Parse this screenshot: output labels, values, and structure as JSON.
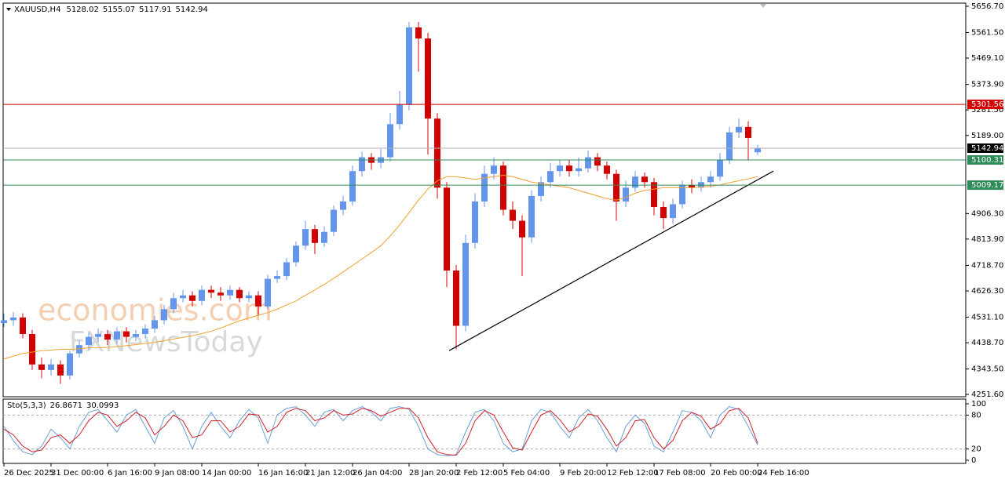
{
  "chart_data": [
    {
      "type": "candlestick",
      "title": "XAUUSD,H4",
      "up_color": "#6495ed",
      "down_color": "#d40000",
      "annotations": [
        "economies.com",
        "FXNewsToday"
      ],
      "categories": [
        "26 Dec 2025",
        null,
        null,
        null,
        null,
        "31 Dec 00:00",
        null,
        null,
        null,
        null,
        null,
        "6 Jan 16:00",
        null,
        null,
        null,
        null,
        "9 Jan 08:00",
        null,
        null,
        null,
        null,
        "14 Jan 00:00",
        null,
        null,
        null,
        null,
        null,
        "16 Jan 16:00",
        null,
        null,
        null,
        null,
        "21 Jan 12:00",
        null,
        null,
        null,
        null,
        "26 Jan 04:00",
        null,
        null,
        null,
        null,
        null,
        "28 Jan 20:00",
        null,
        null,
        null,
        null,
        "2 Feb 12:00",
        null,
        null,
        null,
        null,
        "5 Feb 04:00",
        null,
        null,
        null,
        null,
        null,
        "9 Feb 20:00",
        null,
        null,
        null,
        null,
        "12 Feb 12:00",
        null,
        null,
        null,
        null,
        "17 Feb 08:00",
        null,
        null,
        null,
        null,
        null,
        "20 Feb 00:00",
        null,
        null,
        null,
        null,
        "24 Feb 16:00"
      ],
      "open": [
        4510,
        4520,
        4530,
        4470,
        4360,
        4340,
        4360,
        4320,
        4400,
        4430,
        4460,
        4470,
        4450,
        4480,
        4460,
        4470,
        4490,
        4520,
        4560,
        4600,
        4610,
        4590,
        4630,
        4620,
        4610,
        4630,
        4600,
        4610,
        4570,
        4670,
        4680,
        4730,
        4790,
        4850,
        4800,
        4840,
        4920,
        4950,
        5060,
        5110,
        5090,
        5110,
        5230,
        5300,
        5580,
        5540,
        5250,
        5000,
        4700,
        4500,
        4800,
        4950,
        5050,
        5080,
        4920,
        4880,
        4820,
        4970,
        5020,
        5060,
        5080,
        5060,
        5070,
        5110,
        5080,
        5050,
        4950,
        5000,
        5040,
        5020,
        4930,
        4890,
        4940,
        5010,
        5000,
        5020,
        5040,
        5100,
        5200,
        5220,
        5128.02
      ],
      "high": [
        4545,
        4550,
        4545,
        4485,
        4385,
        4380,
        4375,
        4410,
        4445,
        4475,
        4490,
        4485,
        4495,
        4495,
        4485,
        4505,
        4535,
        4575,
        4620,
        4630,
        4625,
        4645,
        4645,
        4640,
        4645,
        4640,
        4625,
        4625,
        4685,
        4700,
        4745,
        4805,
        4880,
        4865,
        4860,
        4935,
        4970,
        5080,
        5130,
        5125,
        5140,
        5270,
        5350,
        5600,
        5600,
        5560,
        5270,
        5020,
        4720,
        4830,
        4980,
        5080,
        5110,
        5095,
        4950,
        4900,
        4990,
        5040,
        5090,
        5100,
        5100,
        5110,
        5135,
        5125,
        5095,
        5065,
        5025,
        5060,
        5055,
        5035,
        4950,
        4960,
        5025,
        5030,
        5040,
        5060,
        5125,
        5220,
        5250,
        5240,
        5155.07
      ],
      "low": [
        4495,
        4500,
        4455,
        4340,
        4310,
        4320,
        4290,
        4305,
        4385,
        4415,
        4440,
        4430,
        4435,
        4440,
        4445,
        4455,
        4475,
        4505,
        4545,
        4585,
        4570,
        4575,
        4600,
        4590,
        4595,
        4585,
        4585,
        4540,
        4560,
        4655,
        4665,
        4715,
        4775,
        4760,
        4785,
        4825,
        4900,
        4935,
        5040,
        5065,
        5070,
        5095,
        5210,
        5280,
        5420,
        5120,
        4960,
        4640,
        4415,
        4480,
        4780,
        4930,
        5030,
        4900,
        4850,
        4680,
        4800,
        4950,
        5000,
        5040,
        5040,
        5040,
        5055,
        5060,
        5030,
        4880,
        4930,
        4985,
        5000,
        4900,
        4850,
        4870,
        4925,
        4980,
        4985,
        5000,
        5025,
        5085,
        5180,
        5100,
        5117.91
      ],
      "close": [
        4520,
        4530,
        4470,
        4360,
        4340,
        4360,
        4320,
        4400,
        4430,
        4460,
        4470,
        4450,
        4480,
        4460,
        4470,
        4490,
        4520,
        4560,
        4600,
        4610,
        4590,
        4630,
        4620,
        4610,
        4630,
        4600,
        4610,
        4570,
        4670,
        4680,
        4730,
        4790,
        4850,
        4800,
        4840,
        4920,
        4950,
        5060,
        5110,
        5090,
        5110,
        5230,
        5300,
        5580,
        5540,
        5250,
        5000,
        4700,
        4500,
        4800,
        4950,
        5050,
        5080,
        4920,
        4880,
        4820,
        4970,
        5020,
        5060,
        5080,
        5060,
        5070,
        5110,
        5080,
        5050,
        4950,
        5000,
        5040,
        5020,
        4930,
        4890,
        4940,
        5010,
        5000,
        5020,
        5040,
        5100,
        5200,
        5220,
        5180,
        5142.94
      ],
      "ma": {
        "color": "#f0a030",
        "values": [
          4380,
          4390,
          4400,
          4405,
          4410,
          4412,
          4415,
          4415,
          4417,
          4420,
          4420,
          4422,
          4425,
          4428,
          4432,
          4436,
          4440,
          4446,
          4452,
          4458,
          4464,
          4472,
          4480,
          4492,
          4505,
          4518,
          4528,
          4538,
          4548,
          4560,
          4575,
          4590,
          4610,
          4630,
          4650,
          4672,
          4695,
          4718,
          4742,
          4765,
          4790,
          4825,
          4865,
          4910,
          4955,
          4995,
          5025,
          5040,
          5040,
          5035,
          5030,
          5035,
          5040,
          5045,
          5040,
          5030,
          5020,
          5015,
          5010,
          5005,
          5000,
          4990,
          4980,
          4970,
          4960,
          4955,
          4965,
          4980,
          4990,
          4995,
          5000,
          5000,
          5000,
          5000,
          5002,
          5005,
          5010,
          5018,
          5025,
          5032,
          5040
        ]
      },
      "hlines": [
        {
          "value": 5301.56,
          "color": "#d40000",
          "label_bg": "#d40000"
        },
        {
          "value": 5142.94,
          "color": "#b0b0b0",
          "label_bg": "#000000"
        },
        {
          "value": 5100.31,
          "color": "#2e8b57",
          "label_bg": "#2e8b57"
        },
        {
          "value": 5009.17,
          "color": "#2e8b57",
          "label_bg": "#2e8b57"
        }
      ],
      "trendline": {
        "color": "#000000",
        "x": [
          47.25,
          81.67
        ],
        "y": [
          4410,
          5060
        ]
      },
      "ylim": [
        4243.1,
        5668.0
      ],
      "yticks": [
        {
          "value": 5656.7,
          "label": "5656.70"
        },
        {
          "value": 5561.5,
          "label": "5561.50"
        },
        {
          "value": 5469.1,
          "label": "5469.10"
        },
        {
          "value": 5373.9,
          "label": "5373.90"
        },
        {
          "value": 5281.5,
          "label": "5281.50"
        },
        {
          "value": 5189.0,
          "label": "5189.00"
        },
        {
          "value": 4906.3,
          "label": "4906.30"
        },
        {
          "value": 4813.9,
          "label": "4813.90"
        },
        {
          "value": 4718.7,
          "label": "4718.70"
        },
        {
          "value": 4626.3,
          "label": "4626.30"
        },
        {
          "value": 4531.1,
          "label": "4531.10"
        },
        {
          "value": 4438.7,
          "label": "4438.70"
        },
        {
          "value": 4343.5,
          "label": "4343.50"
        },
        {
          "value": 4251.6,
          "label": "4251.60"
        }
      ]
    },
    {
      "type": "line",
      "title": "Sto(5,3,3)",
      "series": [
        {
          "color": "#6a9fd8",
          "values": [
            60,
            35,
            15,
            10,
            25,
            55,
            40,
            20,
            60,
            85,
            90,
            70,
            50,
            80,
            90,
            60,
            30,
            75,
            88,
            60,
            20,
            60,
            85,
            60,
            40,
            70,
            90,
            75,
            30,
            80,
            92,
            95,
            80,
            60,
            85,
            90,
            70,
            88,
            95,
            85,
            70,
            92,
            95,
            90,
            60,
            20,
            10,
            8,
            10,
            50,
            85,
            90,
            70,
            30,
            15,
            20,
            70,
            90,
            85,
            60,
            40,
            75,
            90,
            70,
            40,
            15,
            60,
            80,
            65,
            25,
            15,
            50,
            88,
            85,
            70,
            40,
            80,
            95,
            90,
            60,
            26.8671
          ]
        },
        {
          "color": "#d0202a",
          "values": [
            55,
            45,
            25,
            15,
            18,
            40,
            45,
            30,
            45,
            70,
            85,
            80,
            60,
            70,
            85,
            75,
            45,
            60,
            80,
            70,
            40,
            45,
            70,
            70,
            50,
            60,
            82,
            80,
            50,
            60,
            85,
            92,
            88,
            70,
            75,
            88,
            80,
            82,
            92,
            88,
            78,
            85,
            92,
            92,
            75,
            40,
            15,
            10,
            9,
            30,
            70,
            88,
            80,
            50,
            22,
            18,
            50,
            80,
            88,
            72,
            50,
            60,
            82,
            78,
            55,
            25,
            40,
            70,
            72,
            40,
            20,
            35,
            70,
            85,
            78,
            55,
            65,
            88,
            92,
            75,
            30.0993
          ]
        }
      ],
      "levels": [
        80,
        20
      ],
      "ylim": [
        0,
        100
      ],
      "yticks": [
        100,
        80,
        20,
        0
      ]
    }
  ]
}
